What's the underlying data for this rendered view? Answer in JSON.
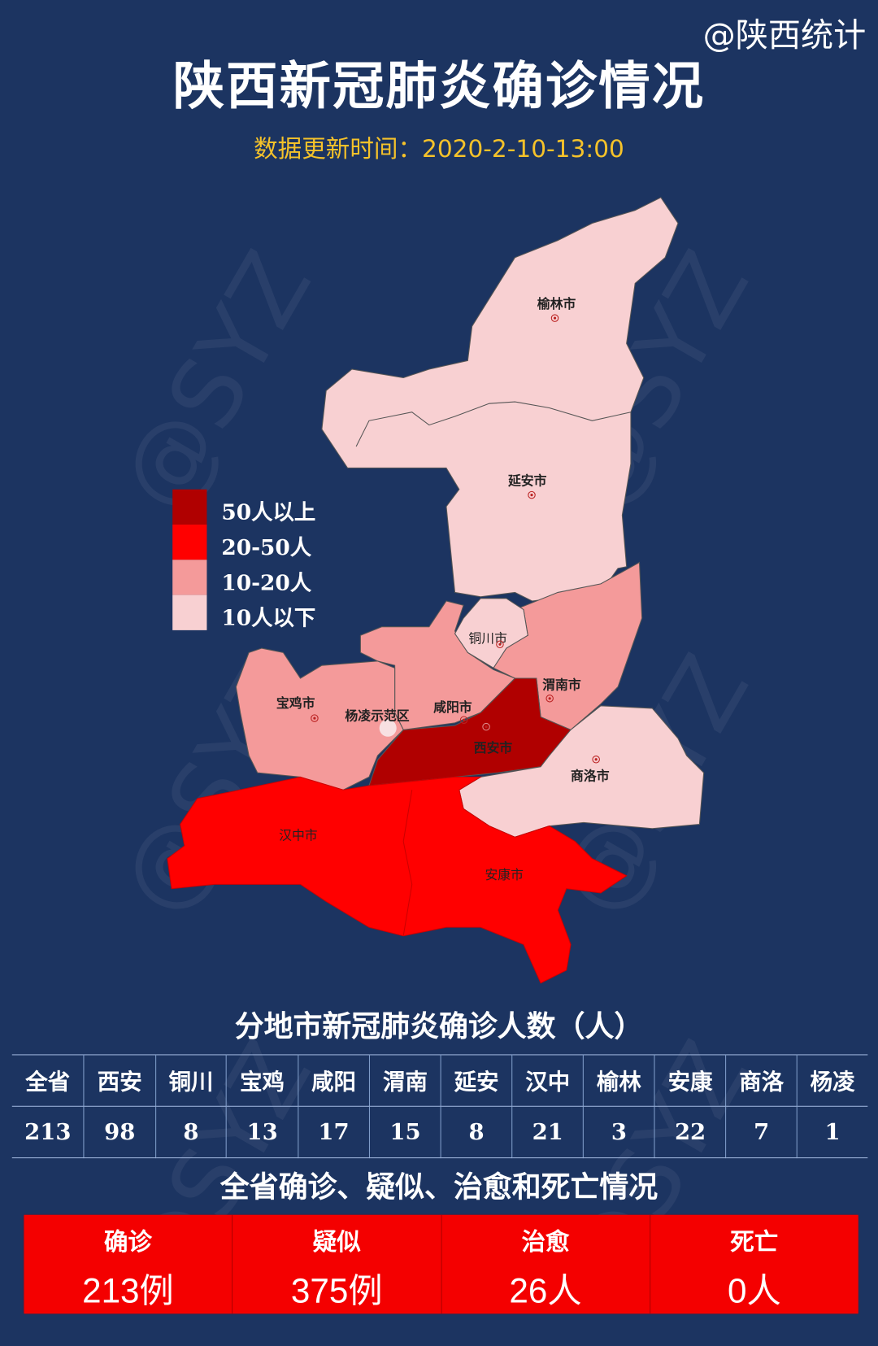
{
  "header": {
    "handle": "@陕西统计",
    "title": "陕西新冠肺炎确诊情况",
    "update_time": "数据更新时间：2020-2-10-13:00"
  },
  "watermark": "@SYZ",
  "colors": {
    "background": "#1c3461",
    "level_50_plus": "#b00000",
    "level_20_50": "#ff0000",
    "level_10_20": "#f49a9a",
    "level_below_10": "#f8d0d2",
    "update_text": "#f5c22a"
  },
  "legend": [
    {
      "label": "50人以上",
      "color": "#b00000"
    },
    {
      "label": "20-50人",
      "color": "#ff0000"
    },
    {
      "label": "10-20人",
      "color": "#f49a9a"
    },
    {
      "label": "10人以下",
      "color": "#f8d0d2"
    }
  ],
  "map": {
    "cities": {
      "yulin": "榆林市",
      "yanan": "延安市",
      "tongchuan": "铜川市",
      "weinan": "渭南市",
      "baoji": "宝鸡市",
      "yangling": "杨凌示范区",
      "xianyang": "咸阳市",
      "xian": "西安市",
      "shangluo": "商洛市",
      "hanzhong": "汉中市",
      "ankang": "安康市"
    }
  },
  "table": {
    "title": "分地市新冠肺炎确诊人数（人）",
    "headers": [
      "全省",
      "西安",
      "铜川",
      "宝鸡",
      "咸阳",
      "渭南",
      "延安",
      "汉中",
      "榆林",
      "安康",
      "商洛",
      "杨凌"
    ],
    "values": [
      "213",
      "98",
      "8",
      "13",
      "17",
      "15",
      "8",
      "21",
      "3",
      "22",
      "7",
      "1"
    ]
  },
  "summary": {
    "title": "全省确诊、疑似、治愈和死亡情况",
    "items": [
      {
        "label": "确诊",
        "value": "213例"
      },
      {
        "label": "疑似",
        "value": "375例"
      },
      {
        "label": "治愈",
        "value": "26人"
      },
      {
        "label": "死亡",
        "value": "0人"
      }
    ]
  }
}
